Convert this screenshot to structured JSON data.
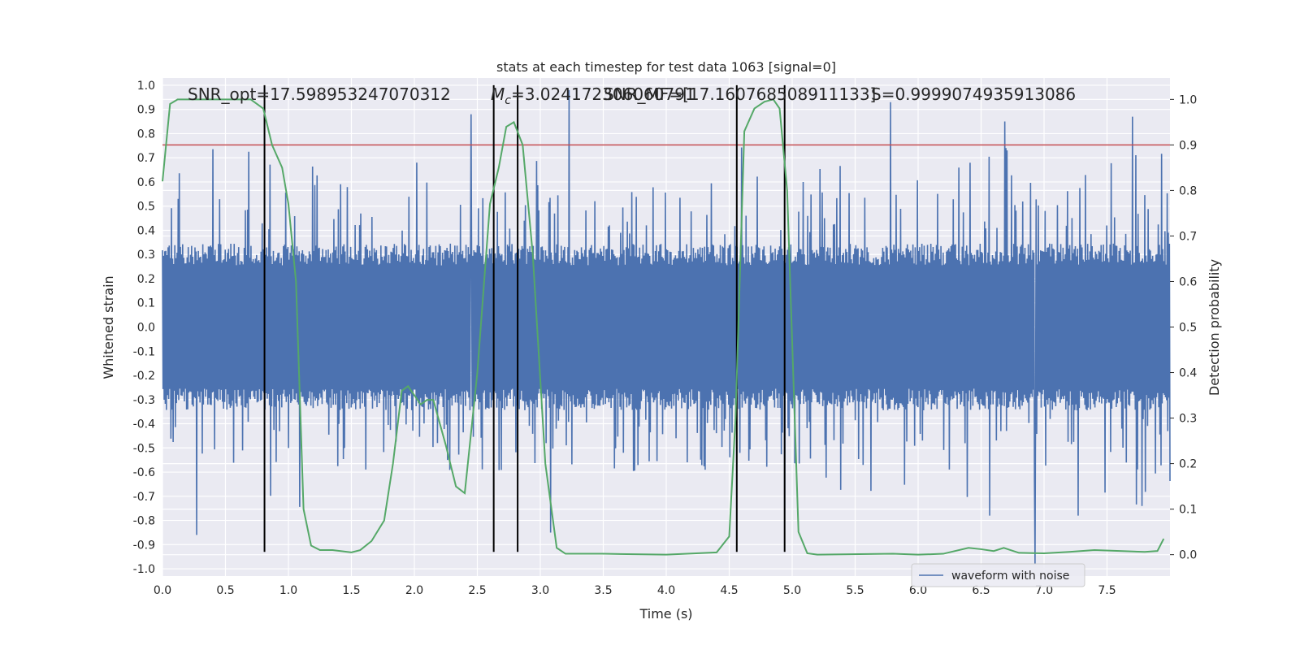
{
  "chart_data": {
    "type": "line",
    "title": "stats at each timestep for test data 1063 [signal=0]",
    "xlabel": "Time (s)",
    "ylabel": "Whitened strain",
    "y2label": "Detection probability",
    "xlim": [
      0.0,
      8.0
    ],
    "ylim": [
      -1.03,
      1.03
    ],
    "y2lim": [
      -0.047,
      1.047
    ],
    "xticks": [
      "0.0",
      "0.5",
      "1.0",
      "1.5",
      "2.0",
      "2.5",
      "3.0",
      "3.5",
      "4.0",
      "4.5",
      "5.0",
      "5.5",
      "6.0",
      "6.5",
      "7.0",
      "7.5"
    ],
    "yticks": [
      "1.0",
      "0.9",
      "0.8",
      "0.7",
      "0.6",
      "0.5",
      "0.4",
      "0.3",
      "0.2",
      "0.1",
      "0.0",
      "-0.1",
      "-0.2",
      "-0.3",
      "-0.4",
      "-0.5",
      "-0.6",
      "-0.7",
      "-0.8",
      "-0.9",
      "-1.0"
    ],
    "y2ticks": [
      "1.0",
      "0.9",
      "0.8",
      "0.7",
      "0.6",
      "0.5",
      "0.4",
      "0.3",
      "0.2",
      "0.1",
      "0.0"
    ],
    "grid": true,
    "legend_position": "bottom-right",
    "annotations": {
      "snr_opt": "SNR_opt=17.598953247070312",
      "mc_prefix": "M",
      "mc_sub": "c",
      "mc_value": "=3.024172306060791",
      "snr_mf": "SNR_MF=[17.160768508911133]",
      "s_value": "S=0.9999074935913086"
    },
    "threshold_line": {
      "y2": 0.9,
      "color": "#c44e52"
    },
    "event_markers_x": [
      0.81,
      2.63,
      2.82,
      4.56,
      4.94
    ],
    "series": [
      {
        "name": "waveform with noise",
        "color": "#4c72b0",
        "axis": "left",
        "band_core": 0.3,
        "peaks": [
          {
            "x": 0.27,
            "y": -0.86
          },
          {
            "x": 2.45,
            "y": 0.88
          },
          {
            "x": 3.08,
            "y": -0.85
          },
          {
            "x": 3.23,
            "y": 0.98
          },
          {
            "x": 4.94,
            "y": -0.8
          },
          {
            "x": 5.78,
            "y": 0.93
          },
          {
            "x": 6.69,
            "y": 0.85
          },
          {
            "x": 6.93,
            "y": -0.98
          },
          {
            "x": 7.7,
            "y": 0.87
          },
          {
            "x": 6.57,
            "y": -0.78
          },
          {
            "x": 7.27,
            "y": -0.78
          }
        ]
      },
      {
        "name": "",
        "color": "#55a868",
        "axis": "right",
        "points": [
          [
            0.0,
            0.82
          ],
          [
            0.06,
            0.99
          ],
          [
            0.12,
            1.0
          ],
          [
            0.5,
            1.0
          ],
          [
            0.7,
            1.0
          ],
          [
            0.8,
            0.98
          ],
          [
            0.87,
            0.9
          ],
          [
            0.95,
            0.85
          ],
          [
            1.0,
            0.77
          ],
          [
            1.06,
            0.6
          ],
          [
            1.12,
            0.1
          ],
          [
            1.18,
            0.02
          ],
          [
            1.25,
            0.01
          ],
          [
            1.35,
            0.01
          ],
          [
            1.5,
            0.005
          ],
          [
            1.57,
            0.01
          ],
          [
            1.66,
            0.03
          ],
          [
            1.76,
            0.075
          ],
          [
            1.83,
            0.2
          ],
          [
            1.9,
            0.36
          ],
          [
            1.95,
            0.37
          ],
          [
            2.05,
            0.33
          ],
          [
            2.1,
            0.34
          ],
          [
            2.15,
            0.34
          ],
          [
            2.25,
            0.24
          ],
          [
            2.33,
            0.15
          ],
          [
            2.4,
            0.135
          ],
          [
            2.5,
            0.4
          ],
          [
            2.6,
            0.77
          ],
          [
            2.67,
            0.85
          ],
          [
            2.73,
            0.94
          ],
          [
            2.79,
            0.95
          ],
          [
            2.86,
            0.9
          ],
          [
            2.94,
            0.66
          ],
          [
            3.04,
            0.2
          ],
          [
            3.13,
            0.015
          ],
          [
            3.2,
            0.002
          ],
          [
            3.5,
            0.002
          ],
          [
            4.0,
            0.0
          ],
          [
            4.4,
            0.005
          ],
          [
            4.5,
            0.04
          ],
          [
            4.55,
            0.3
          ],
          [
            4.62,
            0.93
          ],
          [
            4.7,
            0.98
          ],
          [
            4.78,
            0.995
          ],
          [
            4.85,
            1.0
          ],
          [
            4.9,
            0.98
          ],
          [
            4.96,
            0.8
          ],
          [
            5.05,
            0.05
          ],
          [
            5.12,
            0.003
          ],
          [
            5.2,
            0.0
          ],
          [
            5.8,
            0.002
          ],
          [
            6.0,
            0.0
          ],
          [
            6.2,
            0.002
          ],
          [
            6.4,
            0.015
          ],
          [
            6.5,
            0.012
          ],
          [
            6.6,
            0.008
          ],
          [
            6.68,
            0.015
          ],
          [
            6.8,
            0.004
          ],
          [
            7.0,
            0.003
          ],
          [
            7.2,
            0.006
          ],
          [
            7.4,
            0.01
          ],
          [
            7.6,
            0.008
          ],
          [
            7.8,
            0.006
          ],
          [
            7.9,
            0.008
          ],
          [
            7.95,
            0.035
          ]
        ]
      }
    ]
  },
  "legend": {
    "label": "waveform with noise"
  }
}
